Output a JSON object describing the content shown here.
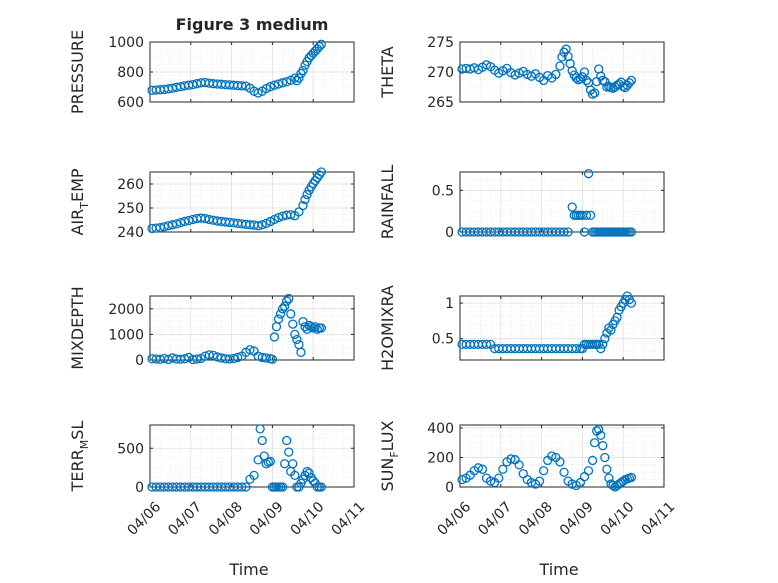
{
  "figure": {
    "title": "Figure 3 medium",
    "marker_color": "#0072BD"
  },
  "chart_data": [
    {
      "type": "scatter",
      "ylabel": "PRESSURE",
      "ylim": [
        600,
        1000
      ],
      "yticks": [
        600,
        800,
        1000
      ],
      "xlim": [
        0,
        5
      ],
      "xtick_labels": [],
      "grid": true,
      "series": [
        {
          "x": [
            0.05,
            0.15,
            0.25,
            0.35,
            0.45,
            0.55,
            0.65,
            0.75,
            0.85,
            0.95,
            1.05,
            1.15,
            1.25,
            1.35,
            1.45,
            1.55,
            1.65,
            1.75,
            1.85,
            1.95,
            2.05,
            2.15,
            2.25,
            2.35,
            2.45,
            2.55,
            2.65,
            2.75,
            2.85,
            2.95,
            3.05,
            3.15,
            3.25,
            3.35,
            3.45,
            3.55,
            3.6,
            3.65,
            3.7,
            3.75,
            3.8,
            3.85,
            3.9,
            3.95,
            4.0,
            4.05,
            4.1,
            4.15,
            4.2
          ],
          "y": [
            678,
            680,
            682,
            684,
            688,
            692,
            698,
            702,
            708,
            712,
            716,
            722,
            728,
            730,
            726,
            722,
            720,
            718,
            716,
            714,
            712,
            710,
            708,
            706,
            692,
            672,
            660,
            672,
            690,
            702,
            712,
            720,
            728,
            735,
            745,
            760,
            742,
            760,
            790,
            810,
            845,
            870,
            895,
            910,
            925,
            940,
            955,
            970,
            985
          ]
        }
      ]
    },
    {
      "type": "scatter",
      "ylabel": "THETA",
      "ylim": [
        265,
        275
      ],
      "yticks": [
        265,
        270,
        275
      ],
      "xlim": [
        0,
        5
      ],
      "xtick_labels": [],
      "grid": true,
      "series": [
        {
          "x": [
            0.05,
            0.15,
            0.25,
            0.35,
            0.45,
            0.55,
            0.65,
            0.75,
            0.85,
            0.95,
            1.05,
            1.15,
            1.25,
            1.35,
            1.45,
            1.55,
            1.65,
            1.75,
            1.85,
            1.95,
            2.05,
            2.15,
            2.25,
            2.35,
            2.45,
            2.5,
            2.55,
            2.6,
            2.65,
            2.7,
            2.75,
            2.8,
            2.85,
            2.9,
            2.95,
            3.0,
            3.05,
            3.1,
            3.15,
            3.2,
            3.25,
            3.3,
            3.35,
            3.4,
            3.45,
            3.5,
            3.55,
            3.6,
            3.65,
            3.7,
            3.75,
            3.8,
            3.85,
            3.9,
            3.95,
            4.0,
            4.05,
            4.1,
            4.15,
            4.2
          ],
          "y": [
            270.5,
            270.6,
            270.5,
            270.7,
            270.4,
            270.8,
            271.2,
            270.9,
            270.3,
            269.8,
            270.2,
            270.6,
            269.9,
            269.5,
            269.8,
            270.1,
            269.6,
            269.3,
            269.7,
            269.1,
            268.6,
            269.4,
            269.0,
            269.6,
            271.0,
            272.5,
            273.3,
            273.8,
            272.6,
            271.4,
            270.2,
            269.5,
            269.0,
            268.7,
            268.9,
            269.2,
            270.0,
            268.6,
            268.2,
            267.0,
            266.3,
            266.5,
            268.4,
            270.5,
            269.3,
            268.6,
            268.4,
            267.5,
            267.6,
            267.4,
            267.3,
            267.5,
            267.8,
            268.0,
            268.3,
            267.6,
            267.4,
            267.8,
            268.2,
            268.6
          ]
        }
      ]
    },
    {
      "type": "scatter",
      "ylabel": "AIR_TEMP",
      "ylim": [
        240,
        265
      ],
      "yticks": [
        240,
        250,
        260
      ],
      "xlim": [
        0,
        5
      ],
      "xtick_labels": [],
      "grid": true,
      "series": [
        {
          "x": [
            0.05,
            0.15,
            0.25,
            0.35,
            0.45,
            0.55,
            0.65,
            0.75,
            0.85,
            0.95,
            1.05,
            1.15,
            1.25,
            1.35,
            1.45,
            1.55,
            1.65,
            1.75,
            1.85,
            1.95,
            2.05,
            2.15,
            2.25,
            2.35,
            2.45,
            2.55,
            2.65,
            2.75,
            2.85,
            2.95,
            3.05,
            3.15,
            3.25,
            3.35,
            3.45,
            3.55,
            3.65,
            3.75,
            3.8,
            3.85,
            3.9,
            3.95,
            4.0,
            4.05,
            4.1,
            4.15,
            4.2
          ],
          "y": [
            241.5,
            241.6,
            241.8,
            242.2,
            242.6,
            243.0,
            243.4,
            243.9,
            244.4,
            244.8,
            245.2,
            245.6,
            245.8,
            245.6,
            245.2,
            244.9,
            244.6,
            244.4,
            244.2,
            244.0,
            243.8,
            243.6,
            243.4,
            243.2,
            243.0,
            242.9,
            242.6,
            243.0,
            243.6,
            244.4,
            245.2,
            246.0,
            246.6,
            247.0,
            247.2,
            246.8,
            248.4,
            251.0,
            253.5,
            255.6,
            257.4,
            258.8,
            260.2,
            261.4,
            262.6,
            263.8,
            265.0
          ]
        }
      ]
    },
    {
      "type": "scatter",
      "ylabel": "RAINFALL",
      "ylim": [
        0,
        0.72
      ],
      "yticks": [
        0,
        0.5
      ],
      "xlim": [
        0,
        5
      ],
      "xtick_labels": [],
      "grid": true,
      "series": [
        {
          "x": [
            0.05,
            0.15,
            0.25,
            0.35,
            0.45,
            0.55,
            0.65,
            0.75,
            0.85,
            0.95,
            1.05,
            1.15,
            1.25,
            1.35,
            1.45,
            1.55,
            1.65,
            1.75,
            1.85,
            1.95,
            2.05,
            2.15,
            2.25,
            2.35,
            2.45,
            2.55,
            2.65,
            2.75,
            2.8,
            2.85,
            2.9,
            2.95,
            3.0,
            3.05,
            3.1,
            3.15,
            3.2,
            3.25,
            3.3,
            3.35,
            3.4,
            3.45,
            3.5,
            3.55,
            3.6,
            3.65,
            3.7,
            3.75,
            3.8,
            3.85,
            3.9,
            3.95,
            4.0,
            4.05,
            4.1,
            4.15,
            4.2
          ],
          "y": [
            0,
            0,
            0,
            0,
            0,
            0,
            0,
            0,
            0,
            0,
            0,
            0,
            0,
            0,
            0,
            0,
            0,
            0,
            0,
            0,
            0,
            0,
            0,
            0,
            0,
            0,
            0,
            0.3,
            0.2,
            0.2,
            0.2,
            0.2,
            0.2,
            0,
            0.2,
            0.7,
            0.2,
            0,
            0,
            0,
            0,
            0,
            0,
            0,
            0,
            0,
            0,
            0,
            0,
            0,
            0,
            0,
            0,
            0,
            0,
            0,
            0
          ]
        }
      ]
    },
    {
      "type": "scatter",
      "ylabel": "MIXDEPTH",
      "ylim": [
        0,
        2500
      ],
      "yticks": [
        0,
        1000,
        2000
      ],
      "xlim": [
        0,
        5
      ],
      "xtick_labels": [],
      "grid": true,
      "series": [
        {
          "x": [
            0.05,
            0.15,
            0.25,
            0.35,
            0.45,
            0.55,
            0.65,
            0.75,
            0.85,
            0.95,
            1.05,
            1.15,
            1.25,
            1.35,
            1.45,
            1.55,
            1.65,
            1.75,
            1.85,
            1.95,
            2.05,
            2.15,
            2.25,
            2.35,
            2.45,
            2.55,
            2.65,
            2.75,
            2.85,
            2.95,
            3.0,
            3.05,
            3.1,
            3.15,
            3.2,
            3.25,
            3.3,
            3.35,
            3.4,
            3.45,
            3.5,
            3.55,
            3.6,
            3.65,
            3.7,
            3.75,
            3.8,
            3.85,
            3.9,
            3.95,
            4.0,
            4.05,
            4.1,
            4.15,
            4.2
          ],
          "y": [
            50,
            40,
            30,
            60,
            20,
            80,
            40,
            30,
            50,
            100,
            20,
            40,
            60,
            150,
            200,
            180,
            120,
            80,
            50,
            40,
            60,
            100,
            150,
            300,
            400,
            350,
            150,
            100,
            80,
            50,
            30,
            900,
            1300,
            1600,
            1800,
            2000,
            2100,
            2300,
            2400,
            1800,
            1400,
            1000,
            800,
            600,
            300,
            1500,
            1300,
            1200,
            1350,
            1300,
            1250,
            1300,
            1200,
            1250,
            1250
          ]
        }
      ]
    },
    {
      "type": "scatter",
      "ylabel": "H2OMIXRA",
      "ylim": [
        0.2,
        1.1
      ],
      "yticks": [
        0.5,
        1
      ],
      "xlim": [
        0,
        5
      ],
      "xtick_labels": [],
      "grid": true,
      "series": [
        {
          "x": [
            0.05,
            0.15,
            0.25,
            0.35,
            0.45,
            0.55,
            0.65,
            0.75,
            0.85,
            0.95,
            1.05,
            1.15,
            1.25,
            1.35,
            1.45,
            1.55,
            1.65,
            1.75,
            1.85,
            1.95,
            2.05,
            2.15,
            2.25,
            2.35,
            2.45,
            2.55,
            2.65,
            2.75,
            2.85,
            2.95,
            3.0,
            3.05,
            3.1,
            3.15,
            3.2,
            3.25,
            3.3,
            3.35,
            3.4,
            3.45,
            3.5,
            3.55,
            3.6,
            3.65,
            3.7,
            3.75,
            3.8,
            3.85,
            3.9,
            3.95,
            4.0,
            4.05,
            4.1,
            4.15,
            4.2
          ],
          "y": [
            0.42,
            0.42,
            0.42,
            0.42,
            0.42,
            0.42,
            0.42,
            0.42,
            0.36,
            0.36,
            0.36,
            0.36,
            0.36,
            0.36,
            0.36,
            0.36,
            0.36,
            0.36,
            0.36,
            0.36,
            0.36,
            0.36,
            0.36,
            0.36,
            0.36,
            0.36,
            0.36,
            0.36,
            0.36,
            0.36,
            0.36,
            0.42,
            0.42,
            0.42,
            0.42,
            0.42,
            0.42,
            0.42,
            0.42,
            0.36,
            0.42,
            0.5,
            0.58,
            0.65,
            0.62,
            0.7,
            0.75,
            0.8,
            0.9,
            0.95,
            1.0,
            1.05,
            1.1,
            1.05,
            1.0
          ]
        }
      ]
    },
    {
      "type": "scatter",
      "ylabel": "TERR_MSL",
      "ylim": [
        0,
        800
      ],
      "yticks": [
        0,
        500
      ],
      "xlim": [
        0,
        5
      ],
      "xtick_labels": [
        "04/06",
        "04/07",
        "04/08",
        "04/09",
        "04/10",
        "04/11"
      ],
      "xlabel": "Time",
      "grid": true,
      "series": [
        {
          "x": [
            0.05,
            0.15,
            0.25,
            0.35,
            0.45,
            0.55,
            0.65,
            0.75,
            0.85,
            0.95,
            1.05,
            1.15,
            1.25,
            1.35,
            1.45,
            1.55,
            1.65,
            1.75,
            1.85,
            1.95,
            2.05,
            2.15,
            2.25,
            2.35,
            2.45,
            2.55,
            2.65,
            2.7,
            2.75,
            2.8,
            2.85,
            2.9,
            2.95,
            3.0,
            3.05,
            3.1,
            3.15,
            3.2,
            3.25,
            3.3,
            3.35,
            3.4,
            3.45,
            3.5,
            3.55,
            3.6,
            3.65,
            3.7,
            3.75,
            3.8,
            3.85,
            3.9,
            3.95,
            4.0,
            4.05,
            4.1,
            4.15,
            4.2
          ],
          "y": [
            0,
            0,
            0,
            0,
            0,
            0,
            0,
            0,
            0,
            0,
            0,
            0,
            0,
            0,
            0,
            0,
            0,
            0,
            0,
            0,
            0,
            0,
            0,
            0,
            100,
            150,
            350,
            750,
            600,
            400,
            300,
            320,
            330,
            0,
            0,
            0,
            0,
            0,
            0,
            300,
            600,
            450,
            200,
            300,
            150,
            0,
            0,
            50,
            100,
            150,
            200,
            180,
            120,
            80,
            50,
            0,
            0,
            0
          ]
        }
      ]
    },
    {
      "type": "scatter",
      "ylabel": "SUN_FLUX",
      "ylim": [
        0,
        420
      ],
      "yticks": [
        0,
        200,
        400
      ],
      "xlim": [
        0,
        5
      ],
      "xtick_labels": [
        "04/06",
        "04/07",
        "04/08",
        "04/09",
        "04/10",
        "04/11"
      ],
      "xlabel": "Time",
      "grid": true,
      "series": [
        {
          "x": [
            0.05,
            0.15,
            0.25,
            0.35,
            0.45,
            0.55,
            0.65,
            0.75,
            0.85,
            0.95,
            1.05,
            1.15,
            1.25,
            1.35,
            1.45,
            1.55,
            1.65,
            1.75,
            1.85,
            1.95,
            2.05,
            2.15,
            2.25,
            2.35,
            2.45,
            2.55,
            2.65,
            2.75,
            2.85,
            2.95,
            3.05,
            3.15,
            3.25,
            3.3,
            3.35,
            3.4,
            3.45,
            3.5,
            3.55,
            3.6,
            3.65,
            3.7,
            3.75,
            3.8,
            3.85,
            3.9,
            3.95,
            4.0,
            4.05,
            4.1,
            4.15,
            4.2
          ],
          "y": [
            50,
            60,
            80,
            110,
            130,
            120,
            60,
            40,
            30,
            60,
            120,
            170,
            190,
            185,
            150,
            90,
            50,
            30,
            20,
            40,
            110,
            180,
            210,
            200,
            170,
            100,
            40,
            20,
            10,
            30,
            70,
            110,
            180,
            300,
            380,
            390,
            350,
            280,
            200,
            120,
            60,
            20,
            10,
            0,
            10,
            20,
            30,
            40,
            50,
            55,
            60,
            65
          ]
        }
      ]
    }
  ]
}
